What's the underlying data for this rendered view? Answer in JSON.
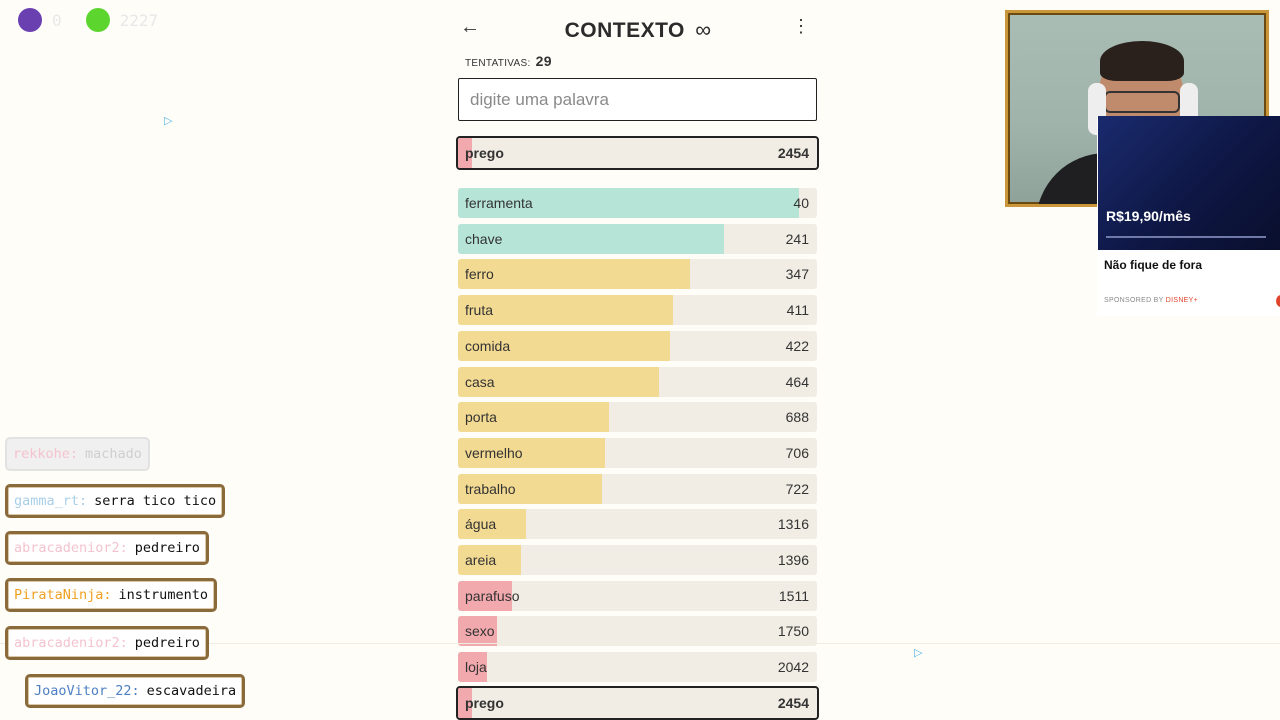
{
  "status": {
    "dot1": {
      "color": "#6a3fb0",
      "label": "0"
    },
    "dot2": {
      "color": "#5cd62f",
      "label": "2227"
    }
  },
  "app": {
    "title": "CONTEXTO",
    "infinity_glyph": "∞",
    "back_icon": "arrow-left-icon",
    "menu_icon": "kebab-menu-icon",
    "tries_label": "TENTATIVAS:",
    "tries_count": "29",
    "search_placeholder": "digite uma palavra",
    "current_guess": {
      "word": "prego",
      "rank": "2454",
      "fraction": 0.04,
      "color": "#f1a9ad"
    },
    "guesses": [
      {
        "word": "ferramenta",
        "rank": "40",
        "fraction": 0.95,
        "color": "#b6e5d8"
      },
      {
        "word": "chave",
        "rank": "241",
        "fraction": 0.74,
        "color": "#b6e5d8"
      },
      {
        "word": "ferro",
        "rank": "347",
        "fraction": 0.645,
        "color": "#f3da92"
      },
      {
        "word": "fruta",
        "rank": "411",
        "fraction": 0.6,
        "color": "#f3da92"
      },
      {
        "word": "comida",
        "rank": "422",
        "fraction": 0.59,
        "color": "#f3da92"
      },
      {
        "word": "casa",
        "rank": "464",
        "fraction": 0.56,
        "color": "#f3da92"
      },
      {
        "word": "porta",
        "rank": "688",
        "fraction": 0.42,
        "color": "#f3da92"
      },
      {
        "word": "vermelho",
        "rank": "706",
        "fraction": 0.41,
        "color": "#f3da92"
      },
      {
        "word": "trabalho",
        "rank": "722",
        "fraction": 0.4,
        "color": "#f3da92"
      },
      {
        "word": "água",
        "rank": "1316",
        "fraction": 0.19,
        "color": "#f3da92"
      },
      {
        "word": "areia",
        "rank": "1396",
        "fraction": 0.175,
        "color": "#f3da92"
      },
      {
        "word": "parafuso",
        "rank": "1511",
        "fraction": 0.15,
        "color": "#f1a9ad"
      },
      {
        "word": "sexo",
        "rank": "1750",
        "fraction": 0.11,
        "color": "#f1a9ad"
      },
      {
        "word": "loja",
        "rank": "2042",
        "fraction": 0.08,
        "color": "#f1a9ad"
      },
      {
        "word": "prego",
        "rank": "2454",
        "fraction": 0.04,
        "color": "#f1a9ad",
        "current": true
      }
    ]
  },
  "ad": {
    "price": "R$19,90/mês",
    "headline": "Não fique de fora",
    "sponsored_prefix": "SPONSORED BY",
    "sponsor": "DISNEY+",
    "marker_icon": "ad-choices-icon"
  },
  "chat": [
    {
      "user": "rekkohe:",
      "message": "machado",
      "user_color": "#f4c3cf",
      "faded": true
    },
    {
      "user": "gamma_rt:",
      "message": "serra tico tico",
      "user_color": "#a9cfe6",
      "faded": false
    },
    {
      "user": "abracadenior2:",
      "message": "pedreiro",
      "user_color": "#f4c3cf",
      "faded": false
    },
    {
      "user": "PirataNinja:",
      "message": "instrumento",
      "user_color": "#f0a020",
      "faded": false
    },
    {
      "user": "abracadenior2:",
      "message": "pedreiro",
      "user_color": "#f4c3cf",
      "faded": false
    },
    {
      "user": "JoaoVitor_22:",
      "message": "escavadeira",
      "user_color": "#4d7fc2",
      "faded": false
    }
  ]
}
